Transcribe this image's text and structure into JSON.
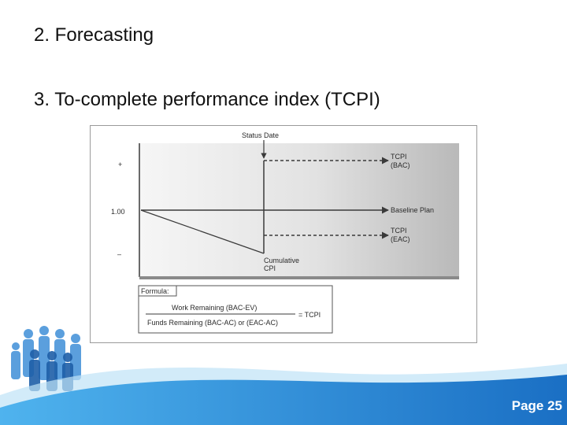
{
  "slide": {
    "bullets": [
      "2. Forecasting",
      "3. To-complete performance index (TCPI)"
    ],
    "page_label": "Page 25"
  },
  "diagram": {
    "status_date": "Status Date",
    "y_plus": "+",
    "y_one": "1.00",
    "y_minus": "–",
    "tcpi_bac": [
      "TCPI",
      "(BAC)"
    ],
    "baseline_plan": "Baseline Plan",
    "tcpi_eac": [
      "TCPI",
      "(EAC)"
    ],
    "cumulative_cpi": [
      "Cumulative",
      "CPI"
    ],
    "formula_heading": "Formula:",
    "numerator": "Work Remaining (BAC-EV)",
    "denominator": "Funds Remaining (BAC-AC) or (EAC-AC)",
    "result": "= TCPI"
  },
  "colors": {
    "wave_dark": "#1a6fc4",
    "wave_light": "#4fb3ee",
    "people": "#3f8fd8",
    "diagram_axis": "#6a6a6a"
  }
}
